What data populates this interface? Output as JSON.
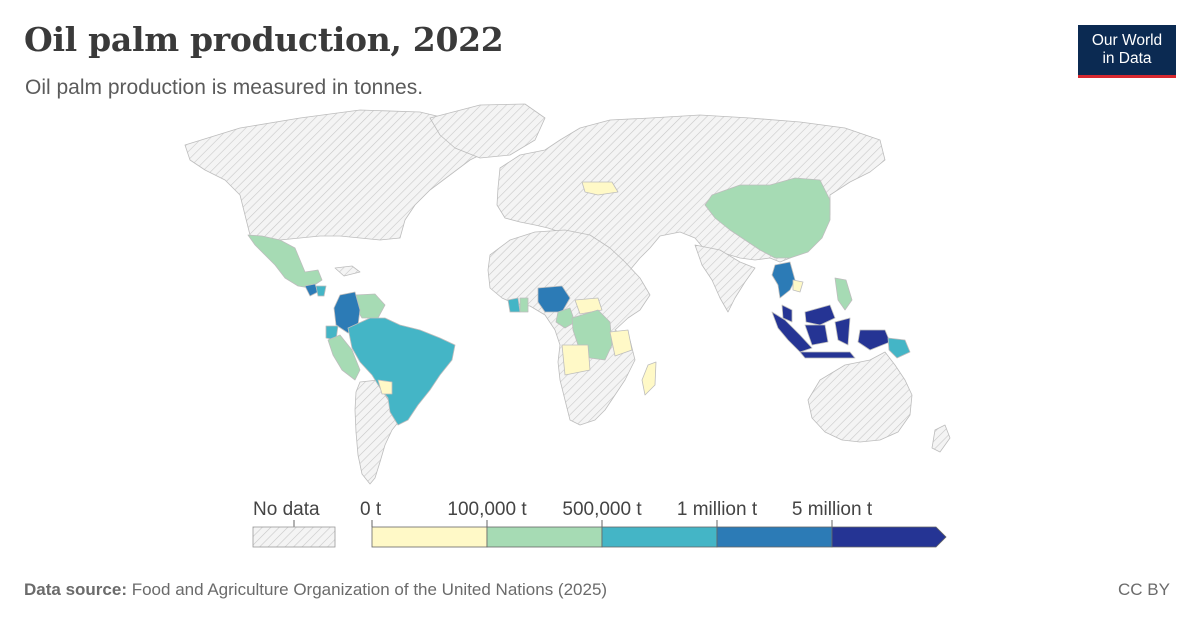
{
  "header": {
    "title": "Oil palm production, 2022",
    "subtitle": "Oil palm production is measured in tonnes."
  },
  "logo": {
    "line1": "Our World",
    "line2": "in Data"
  },
  "legend": {
    "no_data_label": "No data",
    "tick_labels": [
      "0 t",
      "100,000 t",
      "500,000 t",
      "1 million t",
      "5 million t"
    ],
    "bin_colors": [
      "#fff9c7",
      "#a6dbb4",
      "#44b5c6",
      "#2c7bb6",
      "#253494"
    ],
    "no_data_color": "#ececec"
  },
  "footer": {
    "source_label": "Data source:",
    "source_text": "Food and Agriculture Organization of the United Nations (2025)",
    "license": "CC BY"
  },
  "map_data": {
    "colors": {
      "land_no_data": "#eeeeee",
      "bin_0_100k": "#fff9c7",
      "bin_100k_500k": "#a6dbb4",
      "bin_500k_1m": "#44b5c6",
      "bin_1m_5m": "#2c7bb6",
      "bin_5m_plus": "#253494"
    },
    "regions": [
      {
        "name": "Indonesia",
        "bin": "5 million t+"
      },
      {
        "name": "Malaysia",
        "bin": "5 million t+"
      },
      {
        "name": "Thailand",
        "bin": "1 million t - 5 million t"
      },
      {
        "name": "Colombia",
        "bin": "1 million t - 5 million t"
      },
      {
        "name": "Nigeria",
        "bin": "1 million t - 5 million t"
      },
      {
        "name": "Guatemala",
        "bin": "1 million t - 5 million t"
      },
      {
        "name": "Brazil",
        "bin": "500,000 t - 1 million t"
      },
      {
        "name": "Ecuador",
        "bin": "500,000 t - 1 million t"
      },
      {
        "name": "Papua New Guinea",
        "bin": "500,000 t - 1 million t"
      },
      {
        "name": "Côte d'Ivoire",
        "bin": "500,000 t - 1 million t"
      },
      {
        "name": "Ghana",
        "bin": "500,000 t - 1 million t"
      },
      {
        "name": "Honduras",
        "bin": "500,000 t - 1 million t"
      },
      {
        "name": "China",
        "bin": "100,000 t - 500,000 t"
      },
      {
        "name": "Mexico",
        "bin": "100,000 t - 500,000 t"
      },
      {
        "name": "Peru",
        "bin": "100,000 t - 500,000 t"
      },
      {
        "name": "Venezuela",
        "bin": "100,000 t - 500,000 t"
      },
      {
        "name": "DR Congo",
        "bin": "100,000 t - 500,000 t"
      },
      {
        "name": "Cameroon",
        "bin": "100,000 t - 500,000 t"
      },
      {
        "name": "Philippines",
        "bin": "100,000 t - 500,000 t"
      },
      {
        "name": "Angola",
        "bin": "0 t - 100,000 t"
      },
      {
        "name": "Tanzania",
        "bin": "0 t - 100,000 t"
      },
      {
        "name": "Madagascar",
        "bin": "0 t - 100,000 t"
      },
      {
        "name": "Ukraine",
        "bin": "0 t - 100,000 t"
      },
      {
        "name": "Paraguay",
        "bin": "0 t - 100,000 t"
      },
      {
        "name": "Cambodia",
        "bin": "0 t - 100,000 t"
      },
      {
        "name": "Central African Republic",
        "bin": "0 t - 100,000 t"
      }
    ]
  }
}
